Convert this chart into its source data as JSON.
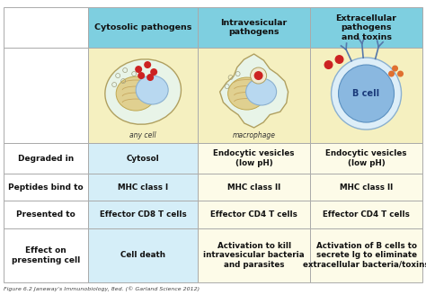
{
  "caption": "Figure 6.2 Janeway's Immunobiology, 8ed. (© Garland Science 2012)",
  "header_bg": "#7ecfe0",
  "image_row_bg": "#f5f0c0",
  "col1_data_bg": "#d5eef8",
  "col23_data_bg": "#fdfbe8",
  "border_color": "#aaaaaa",
  "col_headers": [
    "Cytosolic pathogens",
    "Intravesicular\npathogens",
    "Extracellular\npathogens\nand toxins"
  ],
  "row_labels": [
    "Degraded in",
    "Peptides bind to",
    "Presented to",
    "Effect on\npresenting cell"
  ],
  "cell_data": [
    [
      "Cytosol",
      "Endocytic vesicles\n(low pH)",
      "Endocytic vesicles\n(low pH)"
    ],
    [
      "MHC class I",
      "MHC class II",
      "MHC class II"
    ],
    [
      "Effector CD8 T cells",
      "Effector CD4 T cells",
      "Effector CD4 T cells"
    ],
    [
      "Cell death",
      "Activation to kill\nintravesicular bacteria\nand parasites",
      "Activation of B cells to\nsecrete Ig to eliminate\nextracellular bacteria/toxins"
    ]
  ],
  "figsize": [
    4.74,
    3.28
  ],
  "dpi": 100
}
